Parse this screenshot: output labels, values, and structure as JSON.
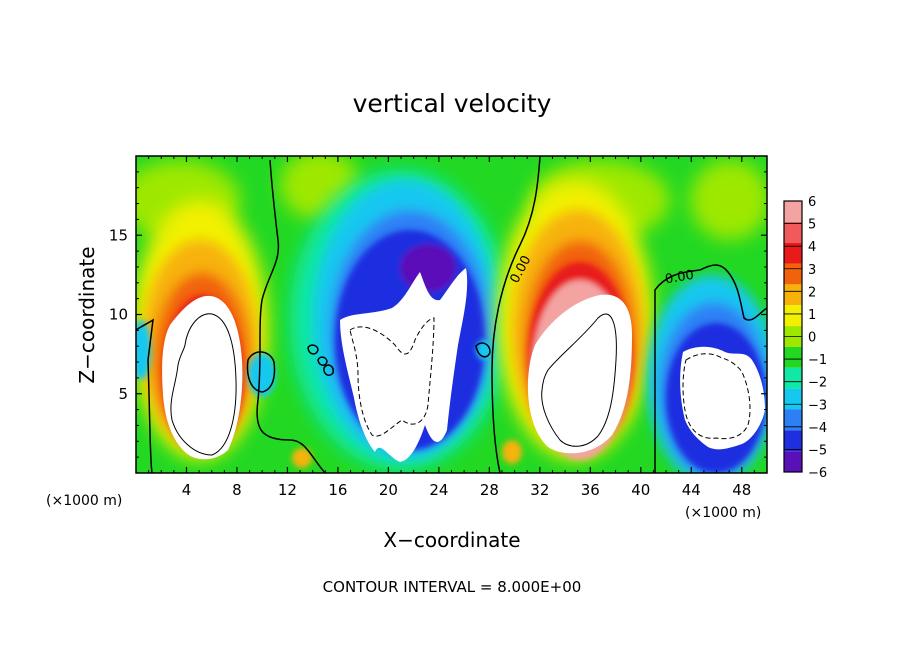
{
  "chart_data": {
    "type": "heatmap",
    "title": "vertical velocity",
    "xlabel": "X−coordinate",
    "ylabel": "Z−coordinate",
    "x_unit_label": "(×1000 m)",
    "z_unit_label": "(×1000 m)",
    "xlim": [
      0,
      50
    ],
    "ylim": [
      0,
      20
    ],
    "x_ticks": [
      4,
      8,
      12,
      16,
      20,
      24,
      28,
      32,
      36,
      40,
      44,
      48
    ],
    "x_tick_labels": [
      "4",
      "8",
      "12",
      "16",
      "20",
      "24",
      "28",
      "32",
      "36",
      "40",
      "44",
      "48"
    ],
    "y_ticks": [
      5,
      10,
      15
    ],
    "y_tick_labels": [
      "5",
      "10",
      "15"
    ],
    "colorbar": {
      "levels": [
        6,
        5,
        4,
        3,
        2,
        1,
        0,
        -1,
        -2,
        -3,
        -4,
        -5,
        -6
      ],
      "labels": [
        "6",
        "5",
        "4",
        "3",
        "2",
        "1",
        "0",
        "−1",
        "−2",
        "−3",
        "−4",
        "−5",
        "−6"
      ],
      "colors": [
        "#f4a3a3",
        "#f05a5a",
        "#e81a1a",
        "#f2620a",
        "#f7b20a",
        "#f2f000",
        "#9ee800",
        "#22d822",
        "#10e8a8",
        "#14c8f0",
        "#2e7ff5",
        "#1f2fe0",
        "#5a10b8"
      ]
    },
    "contour_labels": [
      "0.00",
      "0.00"
    ],
    "features": [
      {
        "kind": "updraft",
        "x_center": 5.5,
        "z_center": 6.0,
        "peak": "above 6",
        "closed_contour": "+8"
      },
      {
        "kind": "downdraft",
        "x_center": 21.5,
        "z_center": 6.5,
        "peak": "below -6",
        "closed_contour": "-8"
      },
      {
        "kind": "updraft",
        "x_center": 35.0,
        "z_center": 6.0,
        "peak": "above 6",
        "closed_contour": "+8"
      },
      {
        "kind": "downdraft",
        "x_center": 45.5,
        "z_center": 5.0,
        "peak": "below -6",
        "closed_contour": "-8"
      }
    ],
    "contour_interval_text": "CONTOUR INTERVAL = 8.000E+00"
  }
}
